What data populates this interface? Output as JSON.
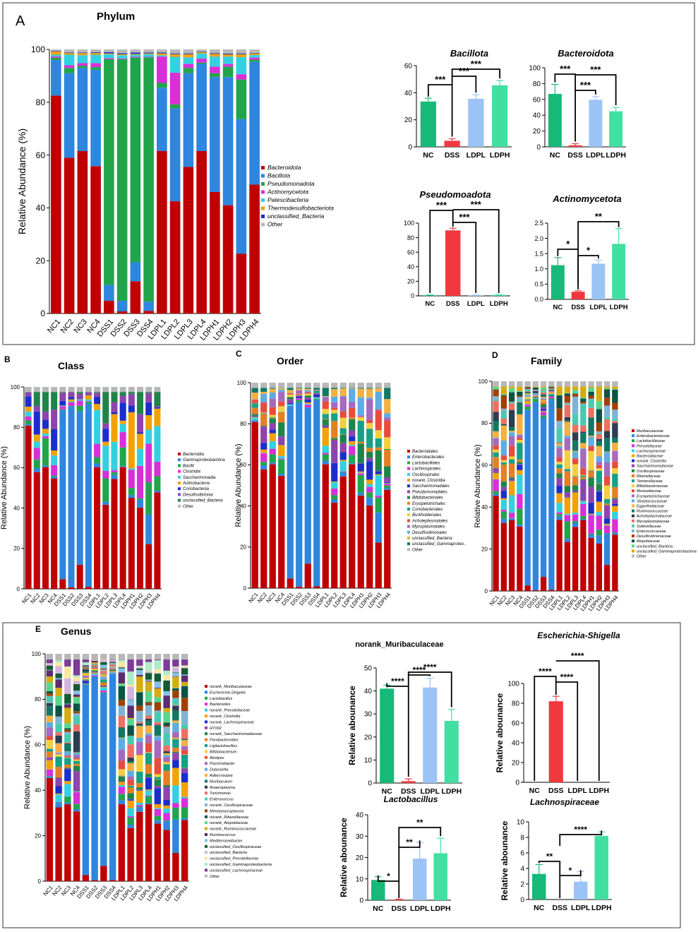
{
  "colors": {
    "Bacteroidota": "#c00000",
    "Bacillota": "#2e86de",
    "Pseudomonadota": "#21a54a",
    "Actinomycetota": "#d82fd8",
    "Patescibacteria": "#33d1e0",
    "Thermodesulfobacteriota": "#f2a100",
    "unclassified_Bacteria": "#1a2ecc",
    "Other": "#b8b8b8",
    "NC": "#17b978",
    "DSS": "#f0393e",
    "LDPL": "#9cc3f5",
    "LDPH": "#41e0a2"
  },
  "panels": {
    "A": {
      "letter": "A",
      "title": "Phylum"
    },
    "B": {
      "letter": "B",
      "title": "Class"
    },
    "C": {
      "letter": "C",
      "title": "Order"
    },
    "D": {
      "letter": "D",
      "title": "Family"
    },
    "E": {
      "letter": "E",
      "title": "Genus"
    }
  },
  "chart_data": [
    {
      "id": "phylum",
      "type": "bar",
      "stacked": true,
      "title": "Phylum",
      "ylabel": "Relative Abundance (%)",
      "ylim": [
        0,
        100
      ],
      "yticks": [
        0,
        20,
        40,
        60,
        80,
        100
      ],
      "categories": [
        "NC1",
        "NC2",
        "NC3",
        "NC4",
        "DSS1",
        "DSS2",
        "DSS3",
        "DSS4",
        "LDPL1",
        "LDPL2",
        "LDPL3",
        "LDPL4",
        "LDPH1",
        "LDPH2",
        "LDPH3",
        "LDPH4"
      ],
      "series": [
        {
          "name": "Bacteroidota",
          "color_key": "Bacteroidota",
          "values": [
            82.5,
            59.0,
            61.5,
            55.8,
            4.8,
            0.8,
            12.2,
            1.0,
            61.5,
            42.5,
            55.5,
            61.5,
            46.0,
            41.0,
            22.6,
            48.8
          ]
        },
        {
          "name": "Bacillota",
          "color_key": "Bacillota",
          "values": [
            13.5,
            32.0,
            31.5,
            36.5,
            6.0,
            4.0,
            7.2,
            3.5,
            24.0,
            35.2,
            35.5,
            33.0,
            43.5,
            48.5,
            51.0,
            46.5
          ]
        },
        {
          "name": "Pseudomonadota",
          "color_key": "Pseudomonadota",
          "values": [
            0.8,
            2.0,
            0.8,
            1.0,
            85.5,
            91.5,
            77.5,
            92.5,
            1.8,
            1.5,
            2.0,
            0.5,
            1.5,
            4.0,
            15.0,
            0.8
          ]
        },
        {
          "name": "Actinomycetota",
          "color_key": "Actinomycetota",
          "values": [
            0.5,
            1.0,
            1.0,
            1.5,
            0.4,
            0.3,
            0.3,
            0.2,
            10.0,
            12.0,
            1.5,
            1.5,
            2.5,
            1.0,
            2.0,
            0.8
          ]
        },
        {
          "name": "Patescibacteria",
          "color_key": "Patescibacteria",
          "values": [
            0.7,
            4.0,
            3.0,
            3.2,
            1.5,
            1.2,
            0.8,
            1.0,
            0.5,
            6.0,
            2.5,
            2.0,
            3.8,
            2.8,
            6.5,
            1.0
          ]
        },
        {
          "name": "Thermodesulfobacteriota",
          "color_key": "Thermodesulfobacteriota",
          "values": [
            1.2,
            0.6,
            0.8,
            0.7,
            0.3,
            0.4,
            0.3,
            0.3,
            0.7,
            1.0,
            1.2,
            0.5,
            1.0,
            0.8,
            1.1,
            0.6
          ]
        },
        {
          "name": "unclassified_Bacteria",
          "color_key": "unclassified_Bacteria",
          "values": [
            0.2,
            0.2,
            0.2,
            0.3,
            0.5,
            0.4,
            0.5,
            0.3,
            0.3,
            0.3,
            0.3,
            0.2,
            0.3,
            0.3,
            0.3,
            0.2
          ]
        },
        {
          "name": "Other",
          "color_key": "Other",
          "values": [
            0.6,
            1.2,
            1.2,
            1.0,
            1.0,
            1.4,
            1.2,
            1.2,
            1.2,
            1.5,
            1.5,
            0.8,
            1.4,
            1.6,
            1.5,
            1.3
          ]
        }
      ]
    },
    {
      "id": "bacillota",
      "type": "bar",
      "title": "Bacillota",
      "ylim": [
        0,
        60
      ],
      "yticks": [
        0,
        20,
        40,
        60
      ],
      "categories": [
        "NC",
        "DSS",
        "LDPL",
        "LDPH"
      ],
      "values": [
        33.5,
        4.5,
        35.5,
        45.5
      ],
      "errors": [
        2.5,
        1.5,
        3.0,
        3.5
      ],
      "significance": [
        "***",
        "***",
        "***"
      ]
    },
    {
      "id": "bacteroidota",
      "type": "bar",
      "title": "Bacteroidota",
      "ylim": [
        0,
        100
      ],
      "yticks": [
        0,
        20,
        40,
        60,
        80,
        100
      ],
      "categories": [
        "NC",
        "DSS",
        "LDPL",
        "LDPH"
      ],
      "values": [
        67,
        2,
        59.5,
        45
      ],
      "errors": [
        12,
        2,
        4,
        5
      ],
      "significance": [
        "***",
        "***",
        "***"
      ]
    },
    {
      "id": "pseudomonadota",
      "type": "bar",
      "title": "Pseudomoadota",
      "ylim": [
        0,
        100
      ],
      "yticks": [
        0,
        20,
        40,
        60,
        80,
        100
      ],
      "categories": [
        "NC",
        "DSS",
        "LDPL",
        "LDPH"
      ],
      "values": [
        0.8,
        90,
        0.8,
        1.2
      ],
      "errors": [
        0.3,
        3,
        0.3,
        0.4
      ],
      "significance": [
        "***",
        "***",
        "***"
      ]
    },
    {
      "id": "actinomycetota",
      "type": "bar",
      "title": "Actinomycetota",
      "ylim": [
        0,
        2.5
      ],
      "yticks": [
        0.0,
        0.5,
        1.0,
        1.5,
        2.0,
        2.5
      ],
      "categories": [
        "NC",
        "DSS",
        "LDPL",
        "LDPH"
      ],
      "values": [
        1.12,
        0.25,
        1.17,
        1.82
      ],
      "errors": [
        0.25,
        0.03,
        0.12,
        0.5
      ],
      "significance": [
        "*",
        "*",
        "**"
      ]
    },
    {
      "id": "muribaculaceae",
      "type": "bar",
      "title": "norank_Muribaculaceae",
      "ylabel": "Relative abounance",
      "ylim": [
        0,
        50
      ],
      "yticks": [
        0,
        10,
        20,
        30,
        40,
        50
      ],
      "categories": [
        "NC",
        "DSS",
        "LDPL",
        "LDPH"
      ],
      "values": [
        41,
        0.8,
        41.5,
        27
      ],
      "errors": [
        1.5,
        1,
        4,
        5
      ],
      "significance": [
        "****",
        "****",
        "****"
      ]
    },
    {
      "id": "escherichia",
      "type": "bar",
      "title": "Escherichia-Shigella",
      "ylabel": "Relative abounance",
      "ylim": [
        0,
        100
      ],
      "yticks": [
        0,
        20,
        40,
        60,
        80,
        100
      ],
      "categories": [
        "NC",
        "DSS",
        "LDPL",
        "LDPH"
      ],
      "values": [
        0,
        82,
        0,
        0
      ],
      "errors": [
        0,
        5,
        0,
        0
      ],
      "significance": [
        "****",
        "****",
        "****"
      ]
    },
    {
      "id": "lactobacillus",
      "type": "bar",
      "title": "Lactobacillus",
      "ylabel": "Relative abounance",
      "ylim": [
        0,
        40
      ],
      "yticks": [
        0,
        10,
        20,
        30,
        40
      ],
      "categories": [
        "NC",
        "DSS",
        "LDPL",
        "LDPH"
      ],
      "values": [
        9.5,
        0.3,
        19.5,
        22
      ],
      "errors": [
        1.5,
        0.2,
        7.5,
        7
      ],
      "significance": [
        "*",
        "**",
        "**"
      ]
    },
    {
      "id": "lachnospiraceae",
      "type": "bar",
      "title": "Lachnospiraceae",
      "ylabel": "Relative abounance",
      "ylim": [
        0,
        10
      ],
      "yticks": [
        0,
        2,
        4,
        6,
        8,
        10
      ],
      "categories": [
        "NC",
        "DSS",
        "LDPL",
        "LDPH"
      ],
      "values": [
        3.3,
        0,
        2.3,
        8.2
      ],
      "errors": [
        1.2,
        0,
        1.3,
        0.5
      ],
      "significance": [
        "**",
        "*",
        "****"
      ]
    },
    {
      "id": "class",
      "type": "bar",
      "stacked": true,
      "title": "Class",
      "ylabel": "Relative Abundance (%)",
      "ylim": [
        0,
        100
      ],
      "yticks": [
        0,
        20,
        40,
        60,
        80,
        100
      ],
      "categories": [
        "NC1",
        "NC2",
        "NC3",
        "NC4",
        "DSS1",
        "DSS2",
        "DSS3",
        "DSS4",
        "LDPL1",
        "LDPL2",
        "LDPL3",
        "LDPL4",
        "LDPH1",
        "LDPH2",
        "LDPH3",
        "LDPH4"
      ],
      "legend": [
        "Bacteroidia",
        "Gammaproteobacteria",
        "Bacilli",
        "Clostridia",
        "Saccharimonadia",
        "Actinobacteria",
        "Coriobacteriia",
        "Desulfovibrionia",
        "unclassified_Bacteria",
        "Other"
      ]
    },
    {
      "id": "order",
      "type": "bar",
      "stacked": true,
      "title": "Order",
      "ylabel": "Relative Abundance (%)",
      "ylim": [
        0,
        100
      ],
      "yticks": [
        0,
        20,
        40,
        60,
        80,
        100
      ],
      "categories": [
        "NC1",
        "NC2",
        "NC3",
        "NC4",
        "DSS1",
        "DSS2",
        "DSS3",
        "DSS4",
        "LDPL1",
        "LDPL2",
        "LDPL3",
        "LDPL4",
        "LDPH1",
        "LDPH2",
        "LDPH3",
        "LDPH4"
      ],
      "legend": [
        "Bacteroidales",
        "Enterobacterales",
        "Lactobacillales",
        "Lachnospirales",
        "Oscillospirales",
        "norank_Clostridia",
        "Saccharimonadales",
        "Pseudomonadales",
        "Bifidobacteriales",
        "Erysipelotrichales",
        "Coriobacteriales",
        "Burkholderiales",
        "Acholeplasmatales",
        "Mycoplasmatales",
        "Desulfovibrionales",
        "unclassified_Bacteria",
        "unclassified_Gammaproteo..",
        "Other"
      ]
    },
    {
      "id": "family",
      "type": "bar",
      "stacked": true,
      "title": "Family",
      "ylabel": "Relative Abundance (%)",
      "ylim": [
        0,
        100
      ],
      "yticks": [
        0,
        20,
        40,
        60,
        80,
        100
      ],
      "categories": [
        "NC1",
        "NC2",
        "NC3",
        "NC4",
        "DSS1",
        "DSS2",
        "DSS3",
        "DSS4",
        "LDPL1",
        "LDPL2",
        "LDPL3",
        "LDPL4",
        "LDPH1",
        "LDPH2",
        "LDPH3",
        "LDPH4"
      ],
      "legend": [
        "Muribaculaceae",
        "Enterobacteriaceae",
        "Lactobacillaceae",
        "Prevotellaceae",
        "Lachnospiraceae",
        "Bacteroidaceae",
        "norank_Clostridia",
        "Saccharimonadaceae",
        "Oscillospiraceae",
        "Rikenellaceae",
        "Tannerellaceae",
        "Bifidobacteriaceae",
        "Moraxellaceae",
        "Erysipelotrichaceae",
        "Streptococcaceae",
        "Eggerthellaceae",
        "Ruminococcaceae",
        "Acholeplasmataceae",
        "Mycoplasmataceae",
        "Sutterellaceae",
        "Enterococcaceae",
        "Desulfovibrionaceae",
        "Atopobiaceae",
        "unclassified_Bacteria",
        "unclassified_Gammaproteobacteria",
        "Other"
      ]
    },
    {
      "id": "genus",
      "type": "bar",
      "stacked": true,
      "title": "Genus",
      "ylabel": "Relative Abundance (%)",
      "ylim": [
        0,
        100
      ],
      "yticks": [
        0,
        20,
        40,
        60,
        80,
        100
      ],
      "categories": [
        "NC1",
        "NC2",
        "NC3",
        "NC4",
        "DSS1",
        "DSS2",
        "DSS3",
        "DSS4",
        "LDPL1",
        "LDPL2",
        "LDPL3",
        "LDPL4",
        "LDPH1",
        "LDPH2",
        "LDPH3",
        "LDPH4"
      ],
      "legend": [
        "norank_Muribaculaceae",
        "Escherichia-Shigella",
        "Lactobacillus",
        "Bacteroides",
        "norank_Prevotellaceae",
        "norank_Clostridia",
        "norank_Lachnospiraceae",
        "HT002",
        "norank_Saccharimonadaceae",
        "Parabacteroides",
        "Ligilactobacillus",
        "Bifidobacterium",
        "Alistipes",
        "Psychrobacter",
        "Dubosiella",
        "Adlercreutzia",
        "Muribaculum",
        "Anaeroplasma",
        "Turicimonas",
        "Enterococcus",
        "norank_Oscillospiraceae",
        "Mmetamycoplasma",
        "norank_Rikenellaceae",
        "norank_Atopobiaceae",
        "norank_Ruminococcaceae",
        "Ruminococcus",
        "Mediterraneibacter",
        "unclassified_Oscillospiraceae",
        "unclassified_Bacteria",
        "unclassified_Prevotellaceae",
        "unclassified_Gammaproteobacteria",
        "unclassified_Lachnospiraceae",
        "Other"
      ]
    }
  ]
}
